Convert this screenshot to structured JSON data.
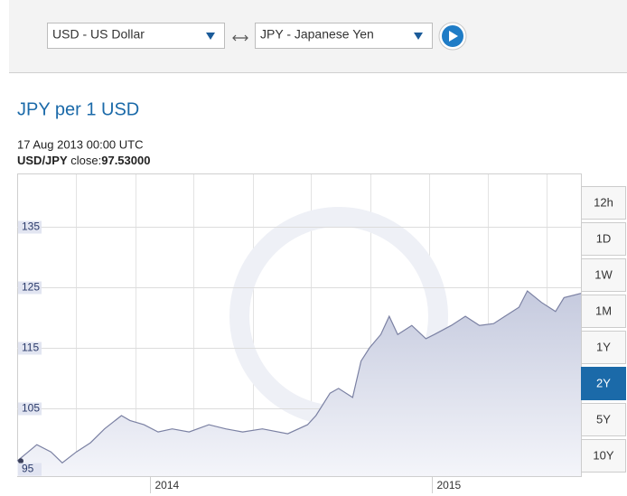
{
  "header": {
    "from_currency": "USD - US Dollar",
    "to_currency": "JPY - Japanese Yen"
  },
  "title": "JPY per 1 USD",
  "info": {
    "timestamp": "17 Aug 2013 00:00 UTC",
    "pair": "USD/JPY",
    "close_label": "close:",
    "close_value": "97.53000"
  },
  "chart_data": {
    "type": "area",
    "x": [
      2013.53,
      2013.6,
      2013.65,
      2013.69,
      2013.74,
      2013.79,
      2013.84,
      2013.9,
      2013.93,
      2013.98,
      2014.03,
      2014.08,
      2014.14,
      2014.21,
      2014.27,
      2014.33,
      2014.4,
      2014.49,
      2014.56,
      2014.59,
      2014.64,
      2014.67,
      2014.72,
      2014.75,
      2014.78,
      2014.82,
      2014.85,
      2014.88,
      2014.93,
      2014.98,
      2015.01,
      2015.07,
      2015.12,
      2015.17,
      2015.22,
      2015.26,
      2015.31,
      2015.34,
      2015.39,
      2015.44,
      2015.47,
      2015.53
    ],
    "series": [
      {
        "color": "#7b81a3",
        "values": [
          96.3,
          99.0,
          97.8,
          96.0,
          97.8,
          99.3,
          101.6,
          103.8,
          103.0,
          102.3,
          101.1,
          101.6,
          101.1,
          102.3,
          101.6,
          101.1,
          101.6,
          100.8,
          102.3,
          103.8,
          107.5,
          108.3,
          106.8,
          112.8,
          115.0,
          117.2,
          120.2,
          117.2,
          118.7,
          116.5,
          117.2,
          118.7,
          120.2,
          118.7,
          119.0,
          120.2,
          121.7,
          124.4,
          122.5,
          121.0,
          123.3,
          124.0
        ]
      }
    ],
    "xlim": [
      2013.53,
      2015.53
    ],
    "xticks": [
      2014,
      2015
    ],
    "ylim": [
      93.8,
      143.8
    ],
    "yticks": [
      95,
      105,
      115,
      125,
      135
    ],
    "grid": true
  },
  "range_buttons": [
    {
      "label": "12h",
      "selected": false
    },
    {
      "label": "1D",
      "selected": false
    },
    {
      "label": "1W",
      "selected": false
    },
    {
      "label": "1M",
      "selected": false
    },
    {
      "label": "1Y",
      "selected": false
    },
    {
      "label": "2Y",
      "selected": true
    },
    {
      "label": "5Y",
      "selected": false
    },
    {
      "label": "10Y",
      "selected": false
    }
  ]
}
